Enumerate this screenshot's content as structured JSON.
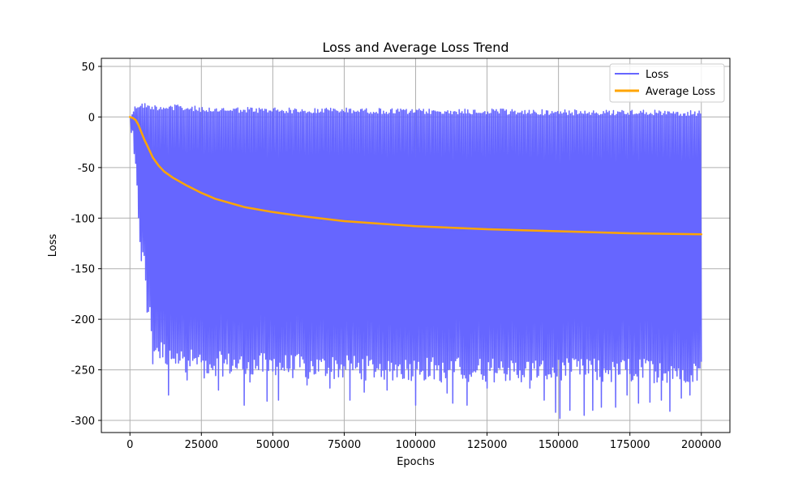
{
  "chart_data": {
    "type": "line",
    "title": "Loss and Average Loss Trend",
    "xlabel": "Epochs",
    "ylabel": "Loss",
    "xlim": [
      -10000,
      210000
    ],
    "ylim": [
      -312,
      58
    ],
    "xticks": [
      0,
      25000,
      50000,
      75000,
      100000,
      125000,
      150000,
      175000,
      200000
    ],
    "yticks": [
      50,
      0,
      -50,
      -100,
      -150,
      -200,
      -250,
      -300
    ],
    "grid": true,
    "legend_position": "top-right",
    "series": [
      {
        "name": "Loss",
        "color": "#6666ff",
        "style": "dense oscillating band",
        "upper_envelope": {
          "x": [
            0,
            1000,
            2000,
            3000,
            5000,
            8000,
            12000,
            16000,
            20000,
            30000,
            50000,
            75000,
            100000,
            125000,
            150000,
            175000,
            200000
          ],
          "y": [
            0,
            8,
            12,
            14,
            14,
            12,
            12,
            12,
            11,
            10,
            9,
            9,
            8,
            8,
            7,
            7,
            6
          ]
        },
        "lower_envelope": {
          "x": [
            0,
            1000,
            2000,
            3000,
            4000,
            5000,
            6000,
            8000,
            10000,
            14000,
            20000,
            30000,
            50000,
            75000,
            100000,
            125000,
            150000,
            175000,
            200000
          ],
          "y": [
            0,
            -30,
            -60,
            -100,
            -140,
            -150,
            -180,
            -225,
            -235,
            -240,
            -245,
            -248,
            -250,
            -252,
            -253,
            -254,
            -255,
            -255,
            -255
          ]
        },
        "spikes_up": [
          {
            "x": 5000,
            "y": 25
          },
          {
            "x": 9000,
            "y": 30
          },
          {
            "x": 12500,
            "y": 35
          },
          {
            "x": 15000,
            "y": 33
          },
          {
            "x": 17000,
            "y": 27
          },
          {
            "x": 23000,
            "y": 32
          },
          {
            "x": 24000,
            "y": 29
          },
          {
            "x": 26000,
            "y": 22
          },
          {
            "x": 30000,
            "y": 22
          },
          {
            "x": 40000,
            "y": 14
          },
          {
            "x": 54000,
            "y": 18
          },
          {
            "x": 57000,
            "y": 16
          },
          {
            "x": 91000,
            "y": 34
          },
          {
            "x": 93000,
            "y": 19
          },
          {
            "x": 108000,
            "y": 20
          },
          {
            "x": 109000,
            "y": 18
          },
          {
            "x": 110000,
            "y": 17
          },
          {
            "x": 120000,
            "y": 33
          },
          {
            "x": 143000,
            "y": 15
          },
          {
            "x": 145000,
            "y": 19
          },
          {
            "x": 152000,
            "y": 32
          },
          {
            "x": 160000,
            "y": 33
          },
          {
            "x": 168000,
            "y": 26
          },
          {
            "x": 171000,
            "y": 33
          },
          {
            "x": 177000,
            "y": 33
          },
          {
            "x": 186000,
            "y": 21
          },
          {
            "x": 193000,
            "y": 23
          },
          {
            "x": 197000,
            "y": 18
          }
        ],
        "spikes_down": [
          {
            "x": 6000,
            "y": -193
          },
          {
            "x": 8000,
            "y": -244
          },
          {
            "x": 13500,
            "y": -275
          },
          {
            "x": 20000,
            "y": -260
          },
          {
            "x": 26000,
            "y": -258
          },
          {
            "x": 31000,
            "y": -270
          },
          {
            "x": 40000,
            "y": -285
          },
          {
            "x": 42000,
            "y": -262
          },
          {
            "x": 48000,
            "y": -281
          },
          {
            "x": 52000,
            "y": -280
          },
          {
            "x": 62000,
            "y": -265
          },
          {
            "x": 70000,
            "y": -268
          },
          {
            "x": 77000,
            "y": -280
          },
          {
            "x": 82000,
            "y": -272
          },
          {
            "x": 90000,
            "y": -270
          },
          {
            "x": 100000,
            "y": -285
          },
          {
            "x": 109000,
            "y": -262
          },
          {
            "x": 111000,
            "y": -273
          },
          {
            "x": 113000,
            "y": -283
          },
          {
            "x": 118000,
            "y": -285
          },
          {
            "x": 125000,
            "y": -268
          },
          {
            "x": 133000,
            "y": -260
          },
          {
            "x": 140000,
            "y": -268
          },
          {
            "x": 145000,
            "y": -280
          },
          {
            "x": 149000,
            "y": -292
          },
          {
            "x": 150500,
            "y": -298
          },
          {
            "x": 154000,
            "y": -290
          },
          {
            "x": 159000,
            "y": -295
          },
          {
            "x": 162000,
            "y": -290
          },
          {
            "x": 165000,
            "y": -287
          },
          {
            "x": 170000,
            "y": -287
          },
          {
            "x": 174000,
            "y": -275
          },
          {
            "x": 178000,
            "y": -283
          },
          {
            "x": 182000,
            "y": -282
          },
          {
            "x": 186000,
            "y": -280
          },
          {
            "x": 189000,
            "y": -291
          },
          {
            "x": 193000,
            "y": -278
          },
          {
            "x": 196000,
            "y": -275
          }
        ]
      },
      {
        "name": "Average Loss",
        "color": "#ffa500",
        "x": [
          0,
          1000,
          2000,
          3000,
          4000,
          5000,
          6000,
          7000,
          8000,
          10000,
          12000,
          15000,
          20000,
          25000,
          30000,
          40000,
          50000,
          60000,
          75000,
          100000,
          125000,
          150000,
          175000,
          200000
        ],
        "y": [
          0,
          -1,
          -3,
          -8,
          -15,
          -22,
          -28,
          -34,
          -40,
          -48,
          -54,
          -60,
          -68,
          -75,
          -81,
          -89,
          -94,
          -98,
          -103,
          -108,
          -111,
          -113,
          -115,
          -116
        ]
      }
    ]
  }
}
